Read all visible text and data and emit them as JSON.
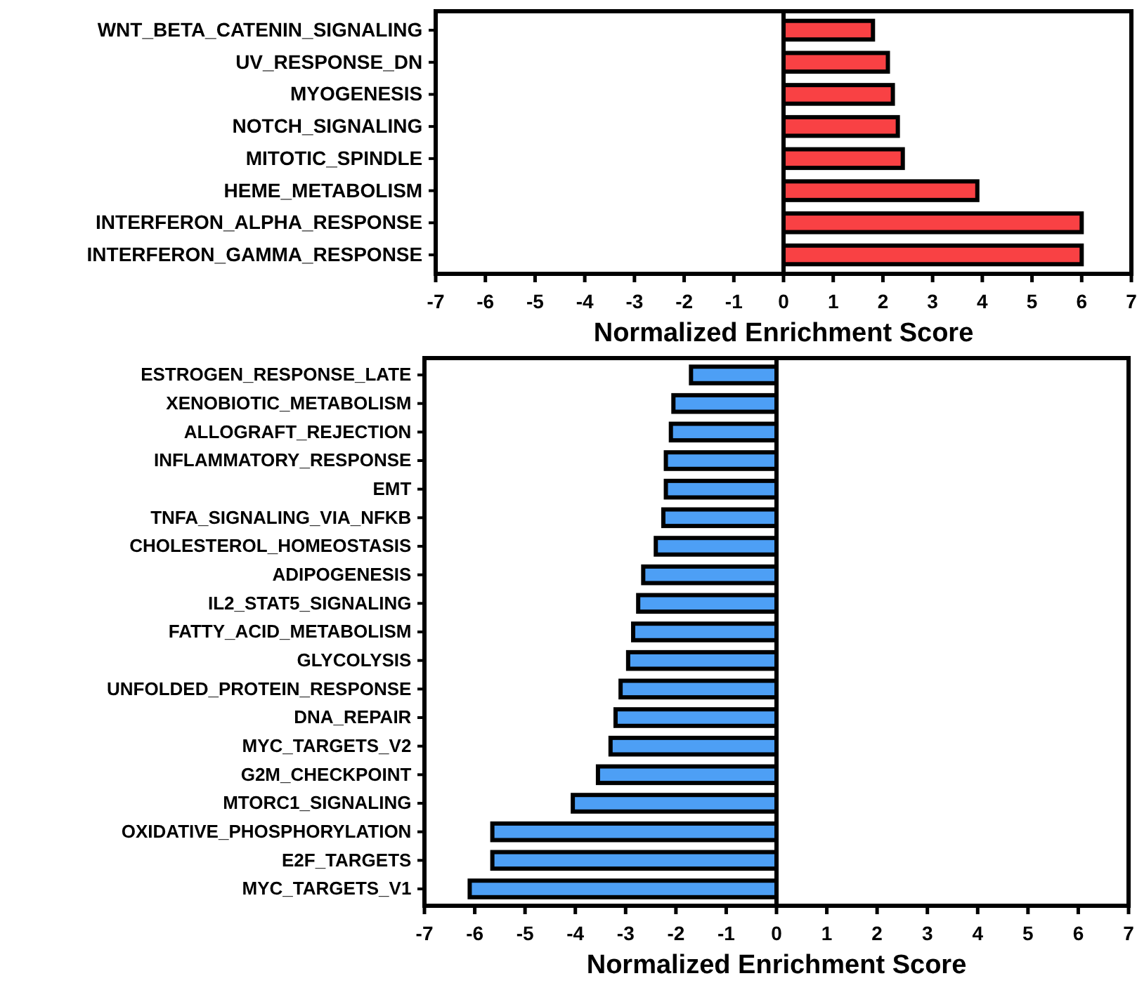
{
  "chart_data": [
    {
      "type": "bar",
      "orientation": "horizontal",
      "xlabel": "Normalized Enrichment Score",
      "categories": [
        "WNT_BETA_CATENIN_SIGNALING",
        "UV_RESPONSE_DN",
        "MYOGENESIS",
        "NOTCH_SIGNALING",
        "MITOTIC_SPINDLE",
        "HEME_METABOLISM",
        "INTERFERON_ALPHA_RESPONSE",
        "INTERFERON_GAMMA_RESPONSE"
      ],
      "values": [
        1.8,
        2.1,
        2.2,
        2.3,
        2.4,
        3.9,
        6.0,
        6.0
      ],
      "color": "#f94144",
      "xlim": [
        -7,
        7
      ],
      "xticks": [
        -7,
        -6,
        -5,
        -4,
        -3,
        -2,
        -1,
        0,
        1,
        2,
        3,
        4,
        5,
        6,
        7
      ]
    },
    {
      "type": "bar",
      "orientation": "horizontal",
      "xlabel": "Normalized Enrichment Score",
      "categories": [
        "ESTROGEN_RESPONSE_LATE",
        "XENOBIOTIC_METABOLISM",
        "ALLOGRAFT_REJECTION",
        "INFLAMMATORY_RESPONSE",
        "EMT",
        "TNFA_SIGNALING_VIA_NFKB",
        "CHOLESTEROL_HOMEOSTASIS",
        "ADIPOGENESIS",
        "IL2_STAT5_SIGNALING",
        "FATTY_ACID_METABOLISM",
        "GLYCOLYSIS",
        "UNFOLDED_PROTEIN_RESPONSE",
        "DNA_REPAIR",
        "MYC_TARGETS_V2",
        "G2M_CHECKPOINT",
        "MTORC1_SIGNALING",
        "OXIDATIVE_PHOSPHORYLATION",
        "E2F_TARGETS",
        "MYC_TARGETS_V1"
      ],
      "values": [
        -1.7,
        -2.05,
        -2.1,
        -2.2,
        -2.2,
        -2.25,
        -2.4,
        -2.65,
        -2.75,
        -2.85,
        -2.95,
        -3.1,
        -3.2,
        -3.3,
        -3.55,
        -4.05,
        -5.65,
        -5.65,
        -6.1
      ],
      "color": "#4d9ff5",
      "xlim": [
        -7,
        7
      ],
      "xticks": [
        -7,
        -6,
        -5,
        -4,
        -3,
        -2,
        -1,
        0,
        1,
        2,
        3,
        4,
        5,
        6,
        7
      ]
    }
  ]
}
